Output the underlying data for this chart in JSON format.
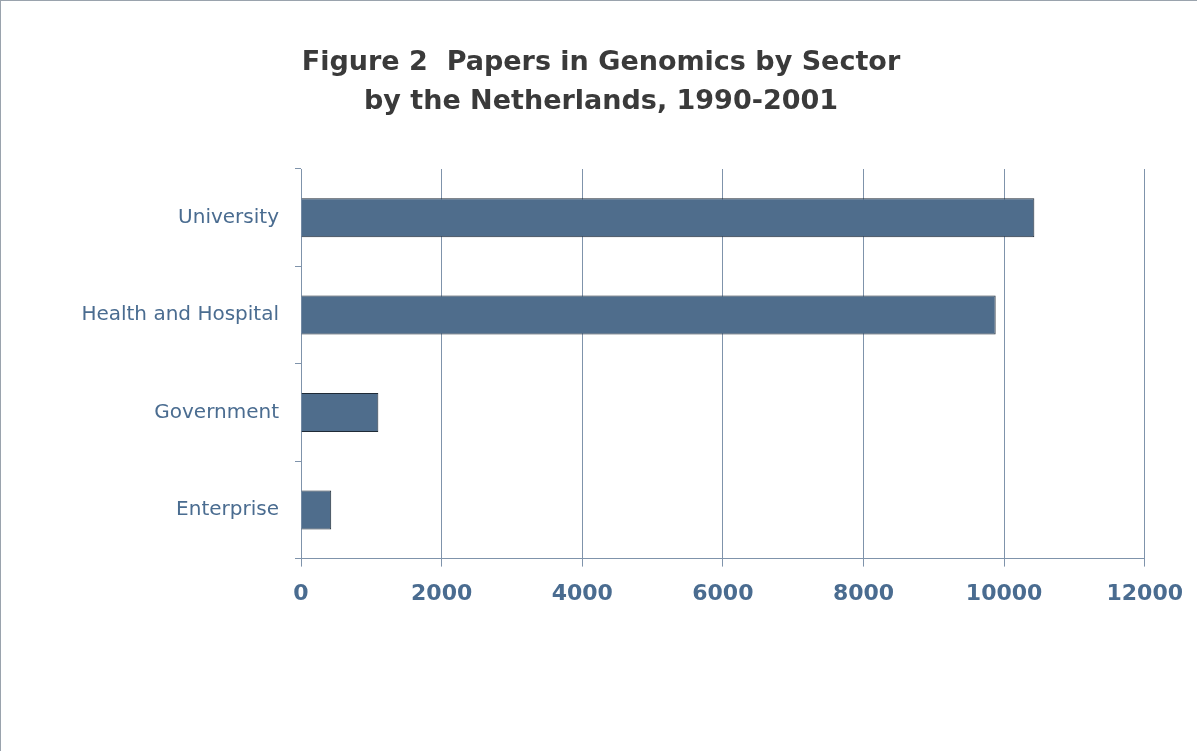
{
  "chart_data": {
    "type": "bar",
    "orientation": "horizontal",
    "title": "Figure 2  Papers in Genomics by Sector by the Netherlands, 1990-2001",
    "categories": [
      "University",
      "Health and Hospital",
      "Government",
      "Enterprise"
    ],
    "values": [
      10430,
      9880,
      1100,
      430
    ],
    "color": "#4f6d8c",
    "xlim": [
      0,
      12000
    ],
    "xticks": [
      0,
      2000,
      4000,
      6000,
      8000,
      10000,
      12000
    ],
    "grid": "x",
    "legend": false
  }
}
